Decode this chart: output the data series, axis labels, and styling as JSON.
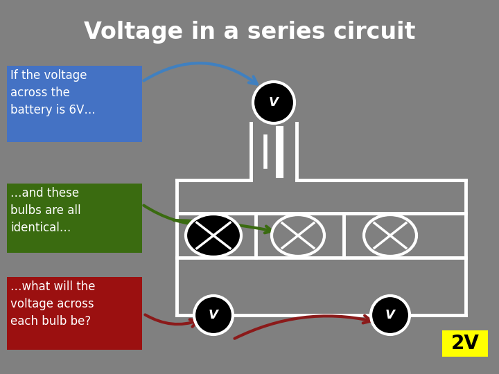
{
  "title": "Voltage in a series circuit",
  "title_fontsize": 24,
  "title_color": "#ffffff",
  "bg_color": "#808080",
  "box1_text": "If the voltage\nacross the\nbattery is 6V…",
  "box1_color": "#4472c4",
  "box2_text": "…and these\nbulbs are all\nidentical…",
  "box2_color": "#3a6b10",
  "box3_text": "…what will the\nvoltage across\neach bulb be?",
  "box3_color": "#9b1010",
  "answer_text": "2V",
  "answer_bg": "#ffff00",
  "answer_color": "#000000",
  "circuit_color": "#ffffff",
  "blue_arrow": "#4080c0",
  "green_arrow": "#3a6b10",
  "red_arrow": "#8b1a1a",
  "lw": 3.5
}
